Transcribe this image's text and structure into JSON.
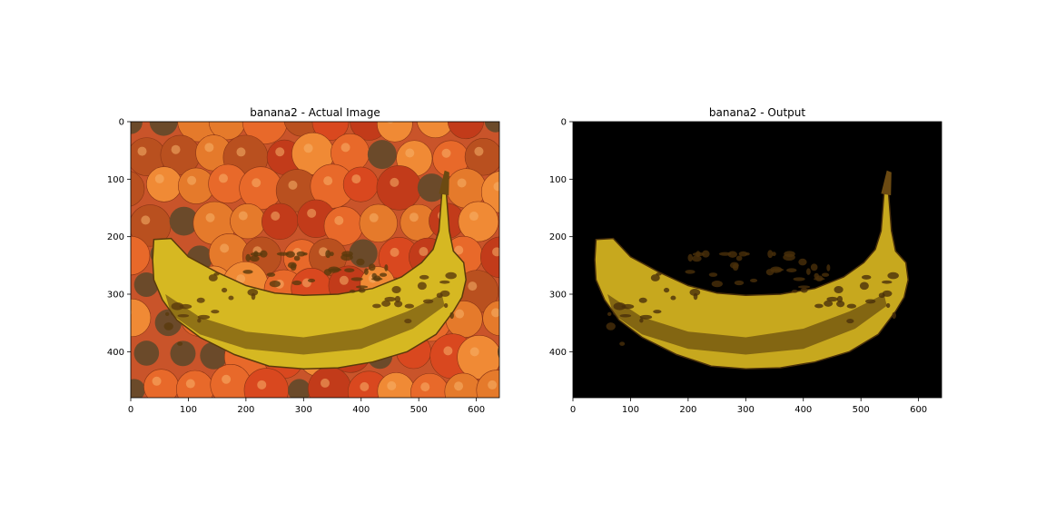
{
  "chart_data": [
    {
      "type": "image",
      "title": "banana2 - Actual Image",
      "xlabel": "",
      "ylabel": "",
      "xlim": [
        0,
        640
      ],
      "ylim": [
        480,
        0
      ],
      "x_ticks": [
        "0",
        "100",
        "200",
        "300",
        "400",
        "500",
        "600"
      ],
      "y_ticks": [
        "0",
        "100",
        "200",
        "300",
        "400"
      ],
      "background": "#c9542a",
      "banana_color": "#d6b822",
      "spot_color": "#5a3a0c",
      "grid": false
    },
    {
      "type": "image",
      "title": "banana2 - Output",
      "xlabel": "",
      "ylabel": "",
      "xlim": [
        0,
        640
      ],
      "ylim": [
        480,
        0
      ],
      "x_ticks": [
        "0",
        "100",
        "200",
        "300",
        "400",
        "500",
        "600"
      ],
      "y_ticks": [
        "0",
        "100",
        "200",
        "300",
        "400"
      ],
      "background": "#000000",
      "banana_color": "#c7a81e",
      "spot_color": "#4a300a",
      "grid": false
    }
  ]
}
